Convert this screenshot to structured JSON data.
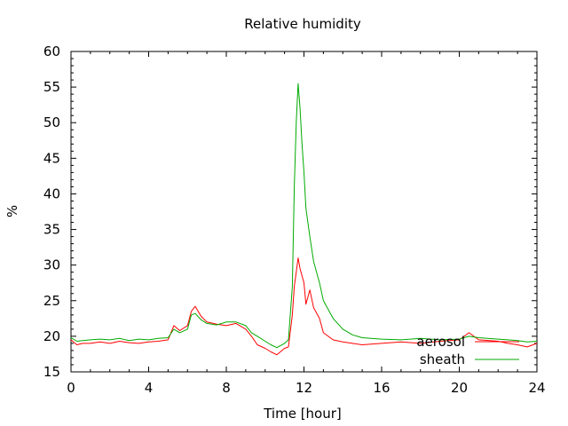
{
  "chart_data": {
    "type": "line",
    "title": "Relative humidity",
    "xlabel": "Time [hour]",
    "ylabel": "%",
    "xlim": [
      0,
      24
    ],
    "ylim": [
      15,
      60
    ],
    "xticks": [
      0,
      4,
      8,
      12,
      16,
      20,
      24
    ],
    "yticks": [
      15,
      20,
      25,
      30,
      35,
      40,
      45,
      50,
      55,
      60
    ],
    "grid": false,
    "legend": "bottom-right",
    "series": [
      {
        "name": "aerosol",
        "color": "#ff0000",
        "x": [
          0,
          0.3,
          0.6,
          1,
          1.5,
          2,
          2.5,
          3,
          3.5,
          4,
          4.5,
          5,
          5.3,
          5.6,
          6,
          6.2,
          6.4,
          6.7,
          7,
          7.5,
          8,
          8.5,
          9,
          9.3,
          9.6,
          10,
          10.3,
          10.6,
          11,
          11.2,
          11.4,
          11.5,
          11.6,
          11.7,
          11.8,
          11.9,
          12,
          12.1,
          12.3,
          12.5,
          12.8,
          13,
          13.5,
          14,
          14.5,
          15,
          16,
          17,
          18,
          19,
          20,
          20.5,
          21,
          22,
          22.5,
          23,
          23.5,
          24
        ],
        "values": [
          19.5,
          18.8,
          19,
          19,
          19.2,
          19,
          19.3,
          19.1,
          19,
          19.2,
          19.3,
          19.5,
          21.5,
          20.8,
          21.5,
          23.5,
          24.2,
          22.8,
          22,
          21.7,
          21.5,
          21.8,
          21,
          20,
          18.8,
          18.3,
          17.8,
          17.4,
          18.3,
          18.5,
          23,
          27,
          29,
          31,
          29.5,
          28.5,
          27.5,
          24.5,
          26.5,
          24,
          22.5,
          20.5,
          19.5,
          19.2,
          19,
          18.8,
          19,
          19.2,
          19,
          19.3,
          19.5,
          20.5,
          19.5,
          19.3,
          19,
          18.8,
          18.5,
          19
        ]
      },
      {
        "name": "sheath",
        "color": "#00aa00",
        "x": [
          0,
          0.3,
          0.6,
          1,
          1.5,
          2,
          2.5,
          3,
          3.5,
          4,
          4.5,
          5,
          5.3,
          5.6,
          6,
          6.2,
          6.4,
          6.7,
          7,
          7.5,
          8,
          8.5,
          9,
          9.3,
          9.6,
          10,
          10.3,
          10.6,
          11,
          11.2,
          11.4,
          11.5,
          11.6,
          11.7,
          11.8,
          11.9,
          12,
          12.1,
          12.3,
          12.5,
          12.8,
          13,
          13.5,
          14,
          14.5,
          15,
          16,
          17,
          18,
          19,
          20,
          20.5,
          21,
          22,
          22.5,
          23,
          23.5,
          24
        ],
        "values": [
          19.8,
          19.3,
          19.4,
          19.5,
          19.6,
          19.5,
          19.7,
          19.4,
          19.6,
          19.5,
          19.7,
          19.8,
          21,
          20.5,
          21,
          23,
          23.2,
          22.3,
          21.8,
          21.6,
          22,
          22,
          21.5,
          20.5,
          20,
          19.3,
          18.8,
          18.4,
          19,
          19.5,
          27,
          41,
          50,
          55.5,
          52,
          47,
          43,
          38,
          34,
          30.5,
          27.5,
          25,
          22.5,
          21,
          20.2,
          19.8,
          19.6,
          19.5,
          19.7,
          19.5,
          19.6,
          20,
          19.8,
          19.6,
          19.5,
          19.4,
          19.2,
          19.3
        ]
      }
    ]
  }
}
